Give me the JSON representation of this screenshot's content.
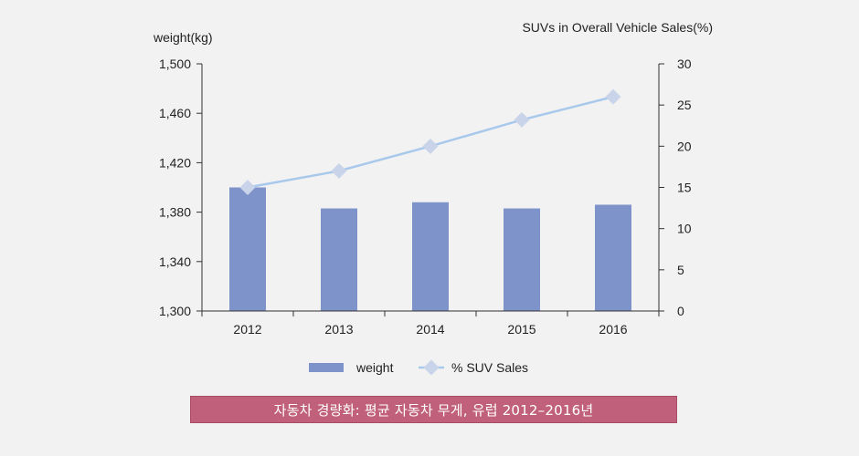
{
  "chart_data": {
    "type": "bar+line",
    "categories": [
      "2012",
      "2013",
      "2014",
      "2015",
      "2016"
    ],
    "series": [
      {
        "name": "weight",
        "type": "bar",
        "axis": "left",
        "values": [
          1400,
          1383,
          1388,
          1383,
          1386
        ],
        "color": "#7f93cb"
      },
      {
        "name": "% SUV Sales",
        "type": "line",
        "axis": "right",
        "values": [
          15,
          17,
          20,
          23.2,
          26
        ],
        "color": "#a8c8ec",
        "marker_color": "#c9d4ea"
      }
    ],
    "left_axis": {
      "label": "weight(kg)",
      "ylim": [
        1300,
        1500
      ],
      "ticks": [
        1300,
        1340,
        1380,
        1420,
        1460,
        1500
      ],
      "tick_labels": [
        "1,300",
        "1,340",
        "1,380",
        "1,420",
        "1,460",
        "1,500"
      ]
    },
    "right_axis": {
      "label": "SUVs in Overall Vehicle Sales(%)",
      "ylim": [
        0,
        30
      ],
      "ticks": [
        0,
        5,
        10,
        15,
        20,
        25,
        30
      ],
      "tick_labels": [
        "0",
        "5",
        "10",
        "15",
        "20",
        "25",
        "30"
      ]
    },
    "legend": {
      "placement": "bottom",
      "entries": [
        "weight",
        "% SUV Sales"
      ]
    },
    "grid": false
  },
  "caption": "자동차 경량화: 평균 자동차 무게, 유럽 2012–2016년"
}
